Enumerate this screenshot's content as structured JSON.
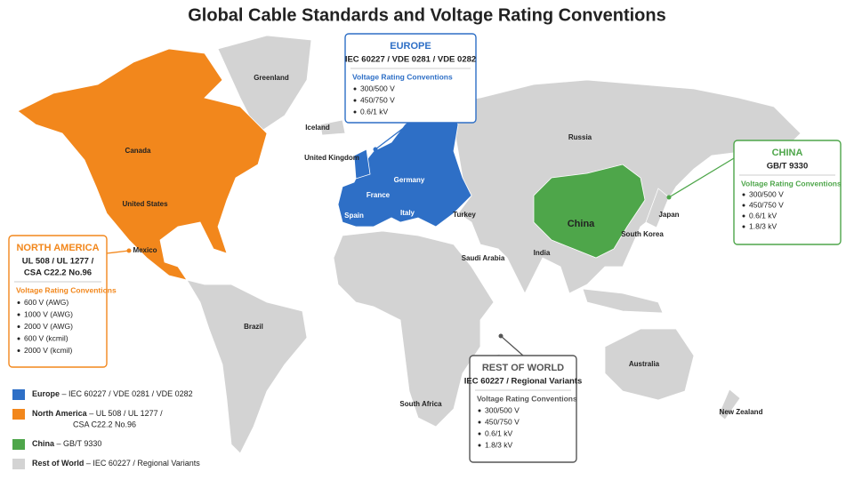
{
  "title": "Global Cable Standards and Voltage Rating Conventions",
  "regions": [
    {
      "name": "EUROPE",
      "standard": [
        "IEC 60227 / VDE 0281 / VDE 0282"
      ],
      "conventions_title": "Voltage Rating Conventions",
      "ratings": [
        "300/500 V",
        "450/750 V",
        "0.6/1 kV"
      ],
      "color": "#2e6fc6",
      "legend": {
        "name": "Europe",
        "text": [
          "– IEC 60227 / VDE 0281 / VDE 0282"
        ]
      }
    },
    {
      "name": "NORTH AMERICA",
      "standard": [
        "UL 508 / UL 1277 /",
        "CSA C22.2 No.96"
      ],
      "conventions_title": "Voltage Rating Conventions",
      "ratings": [
        "600 V (AWG)",
        "1000 V (AWG)",
        "2000 V (AWG)",
        "600 V (kcmil)",
        "2000 V (kcmil)"
      ],
      "color": "#f2871c",
      "legend": {
        "name": "North America",
        "text": [
          "– UL 508 / UL 1277 /",
          "CSA C22.2 No.96"
        ]
      }
    },
    {
      "name": "CHINA",
      "standard": [
        "GB/T 9330"
      ],
      "conventions_title": "Voltage Rating Conventions",
      "ratings": [
        "300/500 V",
        "450/750 V",
        "0.6/1 kV",
        "1.8/3 kV"
      ],
      "color": "#4ea64a",
      "legend": {
        "name": "China",
        "text": [
          "– GB/T 9330"
        ]
      }
    },
    {
      "name": "REST OF WORLD",
      "standard": [
        "IEC 60227 / Regional Variants"
      ],
      "conventions_title": "Voltage Rating Conventions",
      "ratings": [
        "300/500 V",
        "450/750 V",
        "0.6/1 kV",
        "1.8/3 kV"
      ],
      "color": "#d3d3d3",
      "legend": {
        "name": "Rest of World",
        "text": [
          "– IEC 60227 / Regional Variants"
        ]
      }
    }
  ],
  "country_labels": [
    "Greenland",
    "Iceland",
    "United Kingdom",
    "Canada",
    "United States",
    "Mexico",
    "Brazil",
    "Russia",
    "Germany",
    "France",
    "Spain",
    "Italy",
    "Turkey",
    "Saudi Arabia",
    "India",
    "China",
    "Japan",
    "South Korea",
    "Australia",
    "South Africa",
    "New Zealand"
  ]
}
